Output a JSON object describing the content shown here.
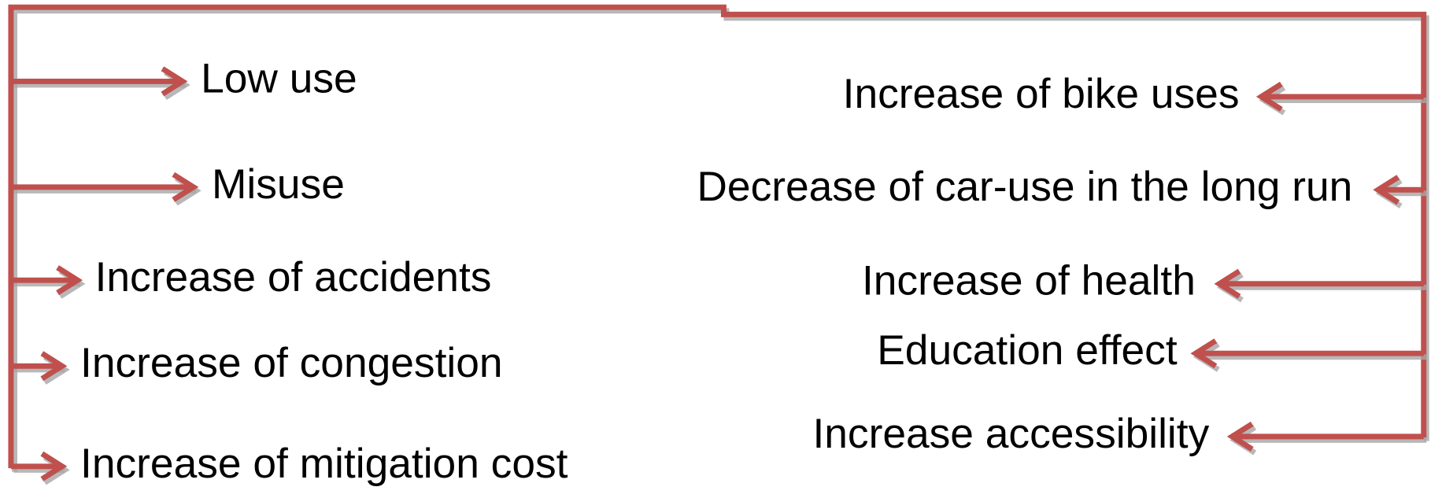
{
  "left_items": [
    "Low use",
    "Misuse",
    "Increase of accidents",
    "Increase of congestion",
    "Increase of mitigation cost"
  ],
  "right_items": [
    "Increase of bike uses",
    "Decrease of car-use in the long run",
    "Increase of health",
    "Education effect",
    "Increase accessibility"
  ]
}
